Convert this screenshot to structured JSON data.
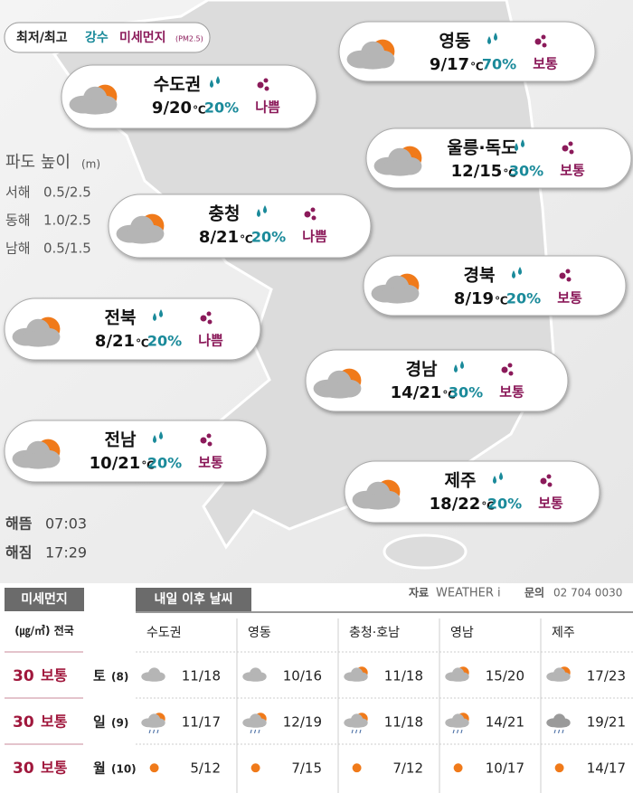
{
  "legend": {
    "temp": "최저/최고",
    "rain": "강수",
    "dust": "미세먼지",
    "dust_unit": "(PM2.5)"
  },
  "wave": {
    "title": "파도 높이",
    "unit": "(m)",
    "rows": [
      {
        "name": "서해",
        "value": "0.5/2.5"
      },
      {
        "name": "동해",
        "value": "1.0/2.5"
      },
      {
        "name": "남해",
        "value": "0.5/1.5"
      }
    ]
  },
  "regions": {
    "temp_unit": "℃",
    "items": [
      {
        "name": "영동",
        "temp": "9/17",
        "rain": "70%",
        "dust": "보통"
      },
      {
        "name": "수도권",
        "temp": "9/20",
        "rain": "20%",
        "dust": "나쁨"
      },
      {
        "name": "울릉·독도",
        "temp": "12/15",
        "rain": "30%",
        "dust": "보통"
      },
      {
        "name": "충청",
        "temp": "8/21",
        "rain": "20%",
        "dust": "나쁨"
      },
      {
        "name": "경북",
        "temp": "8/19",
        "rain": "20%",
        "dust": "보통"
      },
      {
        "name": "전북",
        "temp": "8/21",
        "rain": "20%",
        "dust": "나쁨"
      },
      {
        "name": "경남",
        "temp": "14/21",
        "rain": "30%",
        "dust": "보통"
      },
      {
        "name": "전남",
        "temp": "10/21",
        "rain": "20%",
        "dust": "보통"
      },
      {
        "name": "제주",
        "temp": "18/22",
        "rain": "20%",
        "dust": "보통"
      }
    ]
  },
  "sun": {
    "rise_label": "해뜸",
    "rise": "07:03",
    "set_label": "해짐",
    "set": "17:29"
  },
  "source": {
    "label": "자료",
    "name": "WEATHER i",
    "contact_label": "문의",
    "contact": "02 704 0030"
  },
  "dust_table": {
    "title": "미세먼지",
    "unit": "(㎍/㎥) 전국",
    "rows": [
      {
        "value": "30",
        "grade": "보통"
      },
      {
        "value": "30",
        "grade": "보통"
      },
      {
        "value": "30",
        "grade": "보통"
      }
    ]
  },
  "forecast": {
    "title": "내일 이후 날씨",
    "regions": [
      "수도권",
      "영동",
      "충청·호남",
      "영남",
      "제주"
    ],
    "days": [
      {
        "day": "토",
        "date": "(8)",
        "cells": [
          {
            "icon": "cloud",
            "temp": "11/18"
          },
          {
            "icon": "cloud",
            "temp": "10/16"
          },
          {
            "icon": "sun-cloud",
            "temp": "11/18"
          },
          {
            "icon": "sun-cloud",
            "temp": "15/20"
          },
          {
            "icon": "sun-cloud",
            "temp": "17/23"
          }
        ]
      },
      {
        "day": "일",
        "date": "(9)",
        "cells": [
          {
            "icon": "sun-rain",
            "temp": "11/17"
          },
          {
            "icon": "sun-rain",
            "temp": "12/19"
          },
          {
            "icon": "sun-rain",
            "temp": "11/18"
          },
          {
            "icon": "sun-rain",
            "temp": "14/21"
          },
          {
            "icon": "rain",
            "temp": "19/21"
          }
        ]
      },
      {
        "day": "월",
        "date": "(10)",
        "cells": [
          {
            "icon": "sun",
            "temp": "5/12"
          },
          {
            "icon": "sun",
            "temp": "7/15"
          },
          {
            "icon": "sun",
            "temp": "7/12"
          },
          {
            "icon": "sun",
            "temp": "10/17"
          },
          {
            "icon": "sun",
            "temp": "14/17"
          }
        ]
      }
    ]
  }
}
